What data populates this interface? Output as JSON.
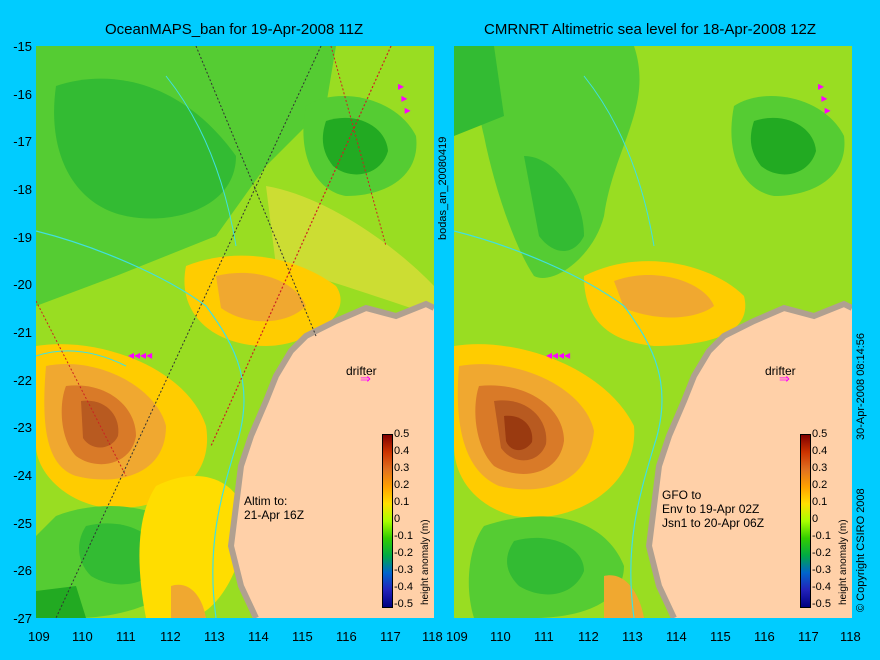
{
  "left_panel": {
    "title": "OceanMAPS_ban for 19-Apr-2008 11Z",
    "note_line1": "Altim to:",
    "note_line2": "21-Apr 16Z",
    "drifter_label": "drifter"
  },
  "right_panel": {
    "title": "CMRNRT Altimetric sea level  for 18-Apr-2008 12Z",
    "note_line1": "GFO to",
    "note_line2": "Env to 19-Apr 02Z",
    "note_line3": "Jsn1 to 20-Apr 06Z",
    "drifter_label": "drifter"
  },
  "axes": {
    "lat_ticks": [
      "-15",
      "-16",
      "-17",
      "-18",
      "-19",
      "-20",
      "-21",
      "-22",
      "-23",
      "-24",
      "-25",
      "-26",
      "-27"
    ],
    "lon_ticks": [
      "109",
      "110",
      "111",
      "112",
      "113",
      "114",
      "115",
      "116",
      "117",
      "118"
    ]
  },
  "colorbar": {
    "label": "height anomaly (m)",
    "ticks": [
      "0.5",
      "0.4",
      "0.3",
      "0.2",
      "0.1",
      "0",
      "-0.1",
      "-0.2",
      "-0.3",
      "-0.4",
      "-0.5"
    ]
  },
  "side_texts": {
    "run_id": "bodas_an_20080419",
    "timestamp": "30-Apr-2008 08:14:56",
    "copyright": "© Copyright CSIRO 2008"
  },
  "colors": {
    "background": "#00ccff",
    "land": "#ffd0a8",
    "coastline": "#b0a090",
    "drifter_arrow": "#ff00ff",
    "isobath": "#40e0e0"
  }
}
